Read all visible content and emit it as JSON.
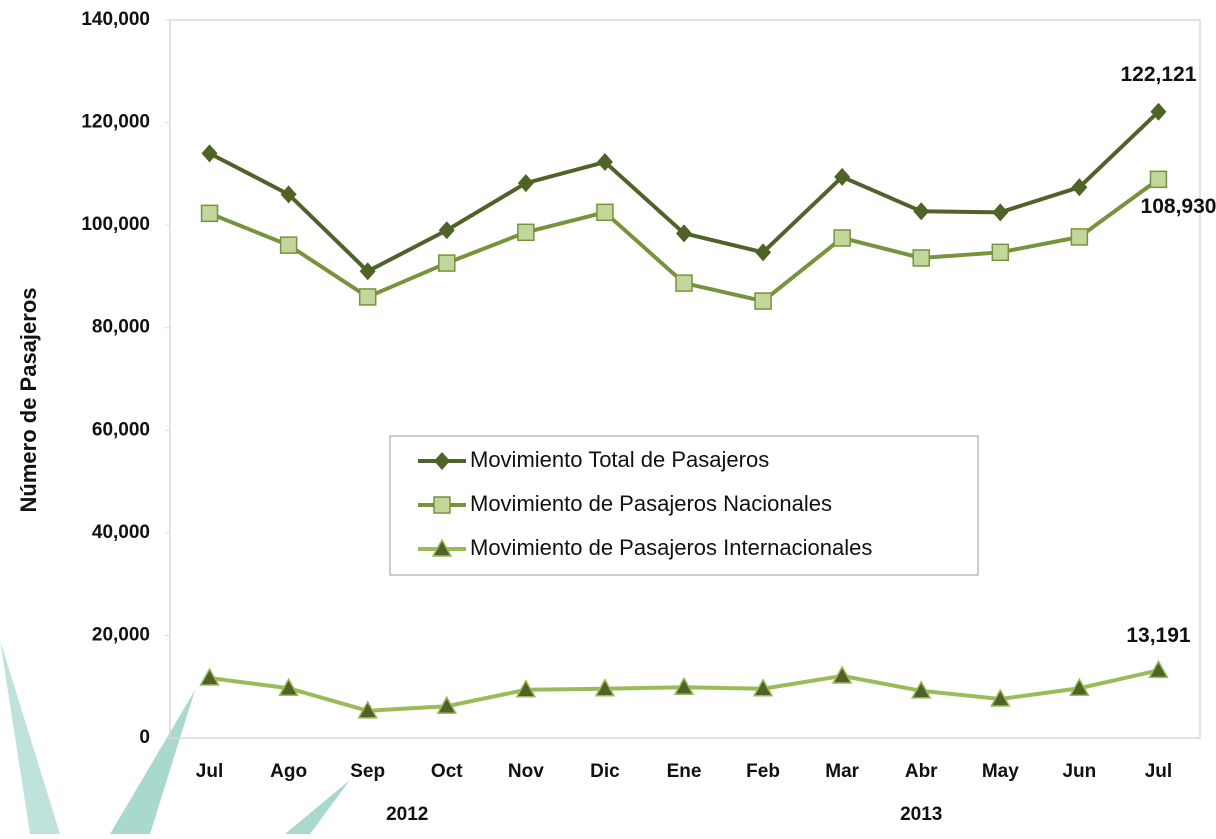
{
  "chart_data": {
    "type": "line",
    "y_label": "Número de Pasajeros",
    "categories": [
      "Jul",
      "Ago",
      "Sep",
      "Oct",
      "Nov",
      "Dic",
      "Ene",
      "Feb",
      "Mar",
      "Abr",
      "May",
      "Jun",
      "Jul"
    ],
    "year_groups": [
      {
        "label": "2012",
        "count": 6
      },
      {
        "label": "2013",
        "count": 7
      }
    ],
    "series": [
      {
        "name": "Movimiento Total de Pasajeros",
        "color": "#4f6228",
        "marker": "diamond",
        "marker_color": "#4f6228",
        "values": [
          114000,
          106000,
          91000,
          99000,
          108200,
          112300,
          98400,
          94700,
          109400,
          102700,
          102500,
          107400,
          122121
        ],
        "value_labels": [
          null,
          null,
          null,
          null,
          null,
          null,
          null,
          null,
          null,
          null,
          null,
          null,
          "122,121"
        ]
      },
      {
        "name": "Movimiento de Pasajeros Nacionales",
        "color": "#77933c",
        "marker": "square",
        "marker_color": "#c3d69b",
        "values": [
          102300,
          96100,
          86000,
          92600,
          98600,
          102500,
          88700,
          85200,
          97500,
          93600,
          94700,
          97700,
          108930
        ],
        "value_labels": [
          null,
          null,
          null,
          null,
          null,
          null,
          null,
          null,
          null,
          null,
          null,
          null,
          "108,930"
        ]
      },
      {
        "name": "Movimiento de Pasajeros Internacionales",
        "color": "#9bbb59",
        "marker": "triangle",
        "marker_color": "#4f6228",
        "values": [
          11700,
          9700,
          5300,
          6200,
          9400,
          9600,
          9900,
          9600,
          12100,
          9200,
          7600,
          9700,
          13191
        ],
        "value_labels": [
          null,
          null,
          null,
          null,
          null,
          null,
          null,
          null,
          null,
          null,
          null,
          null,
          "13,191"
        ]
      }
    ],
    "ylim": [
      0,
      140000
    ],
    "yticks": [
      0,
      {
        "value": 20000,
        "label": "20,000"
      },
      {
        "value": 40000,
        "label": "40,000"
      },
      {
        "value": 60000,
        "label": "60,000"
      },
      {
        "value": 80000,
        "label": "80,000"
      },
      {
        "value": 100000,
        "label": "100,000"
      },
      {
        "value": 120000,
        "label": "120,000"
      },
      {
        "value": 140000,
        "label": "140,000"
      }
    ],
    "grid": false,
    "legend": "center"
  }
}
